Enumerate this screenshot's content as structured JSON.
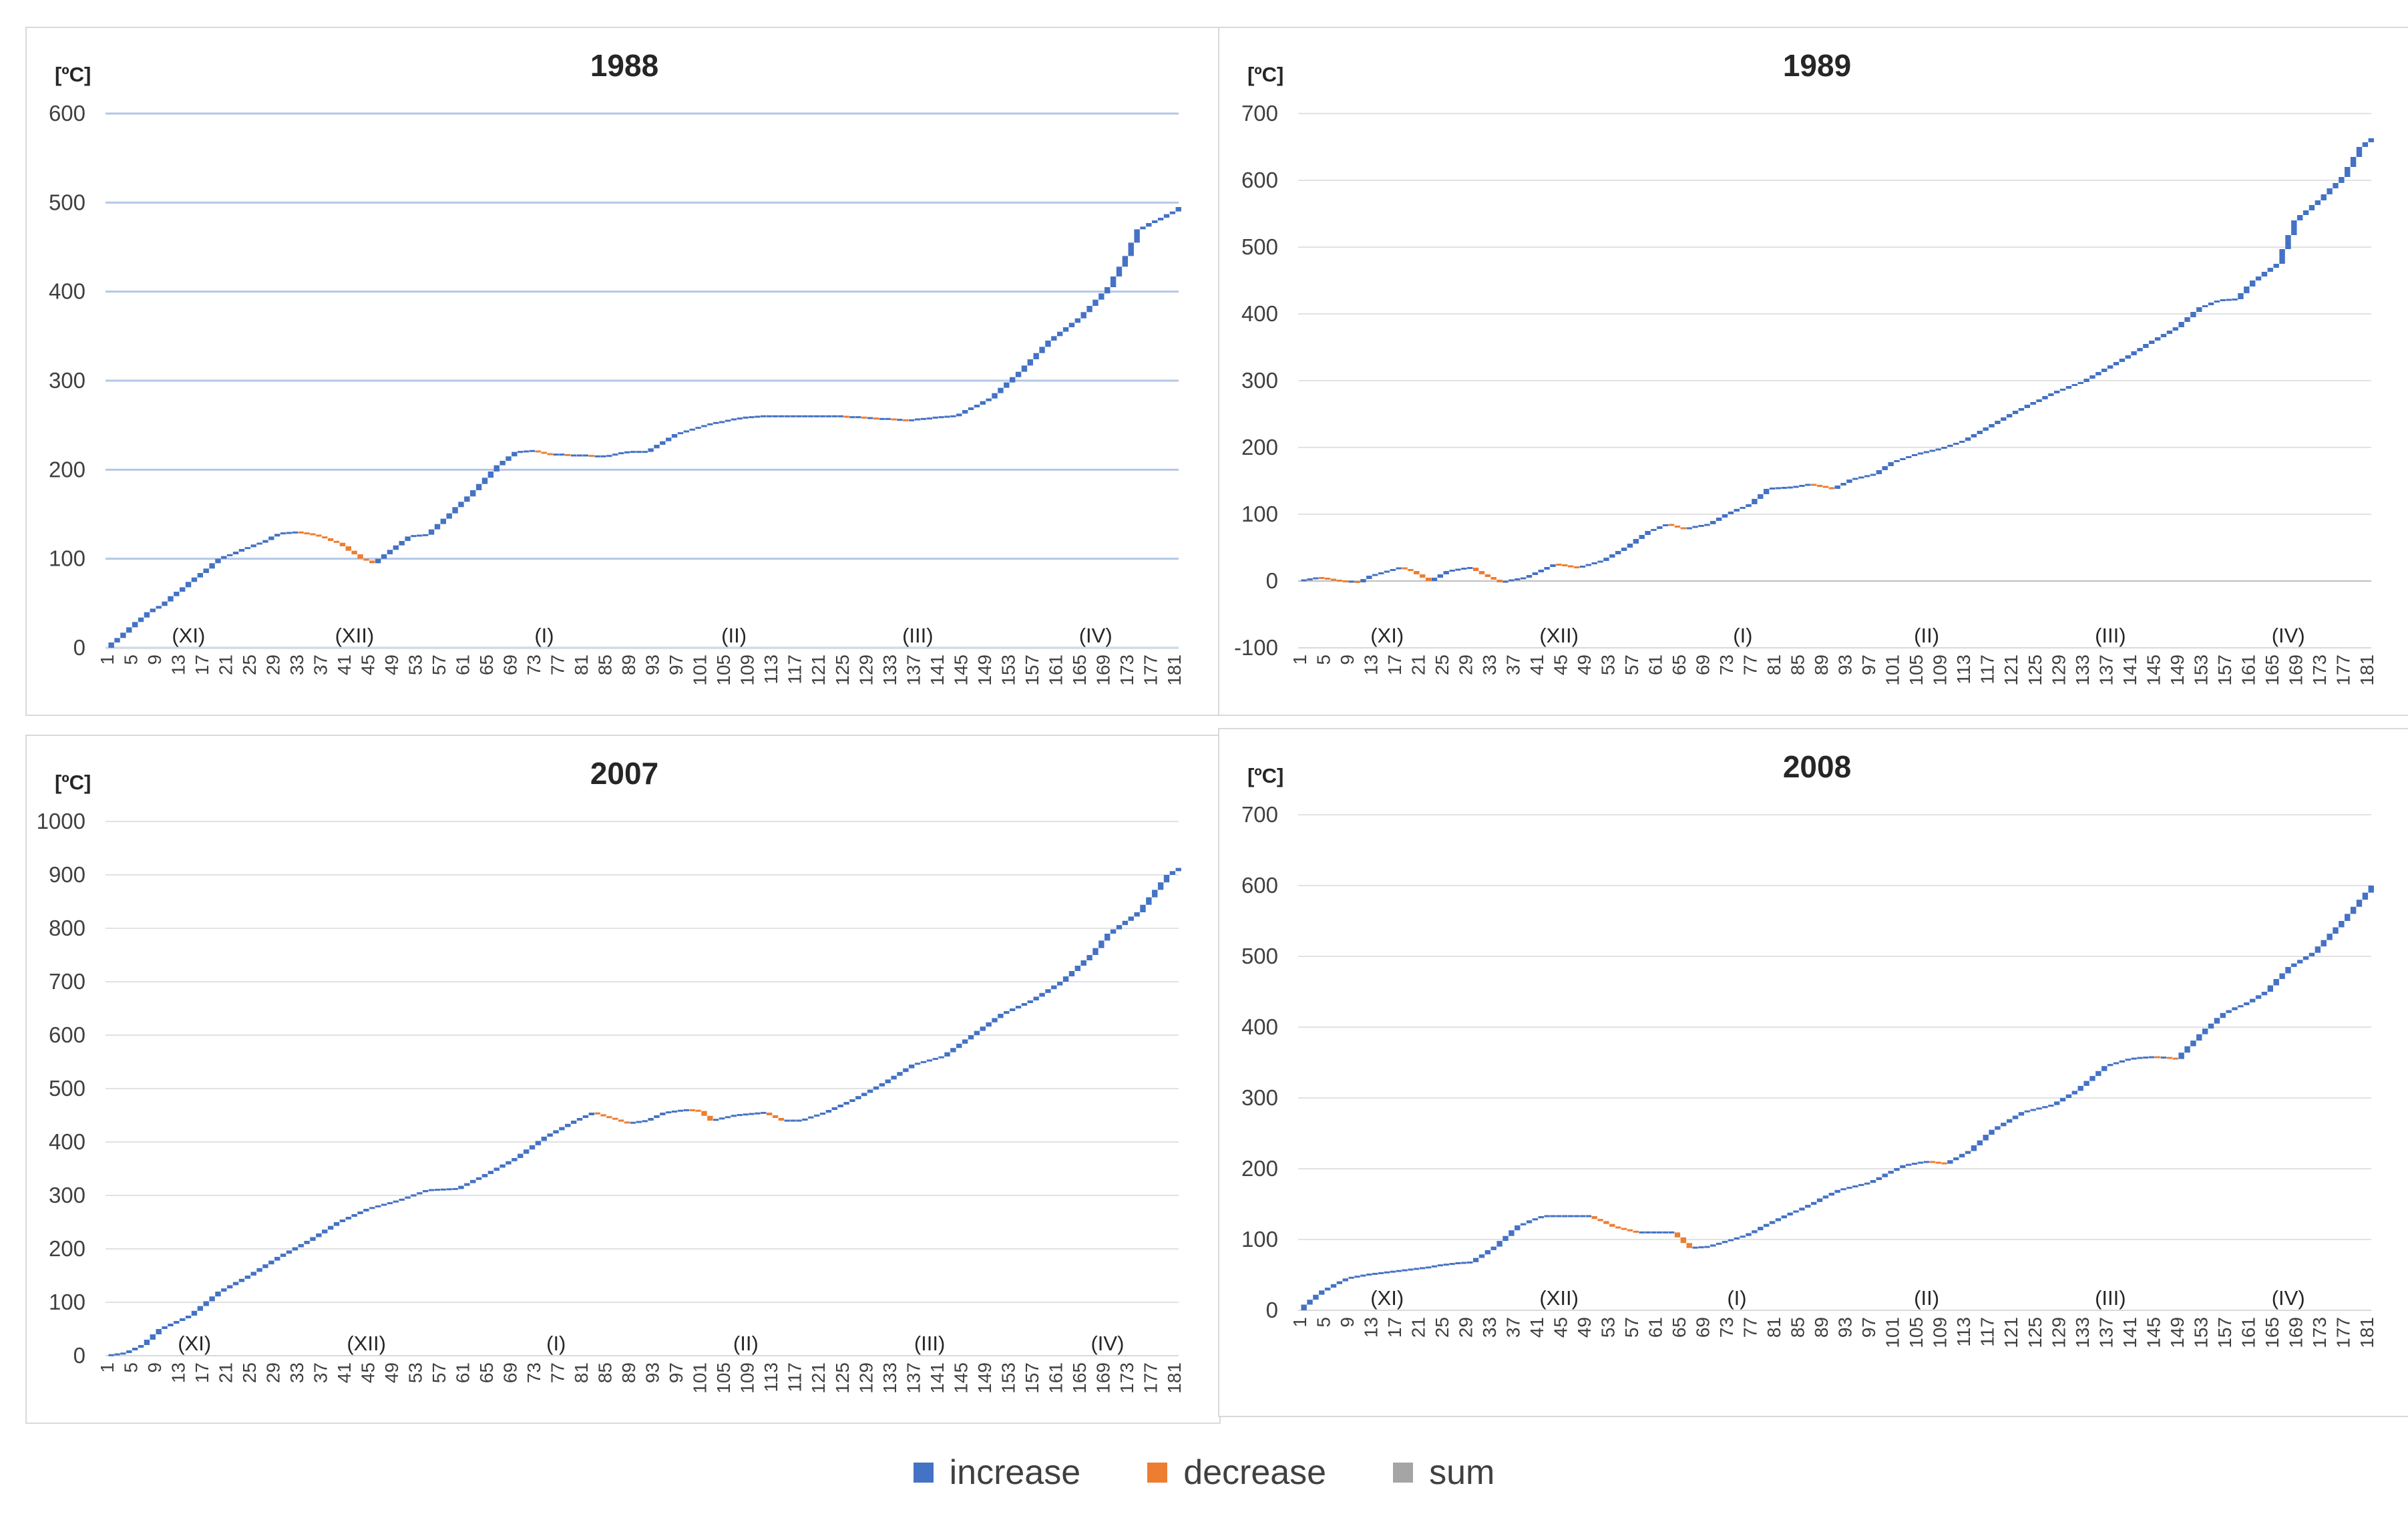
{
  "colors": {
    "increase": "#4472C4",
    "decrease": "#ED7D31",
    "sum": "#A5A5A5",
    "grid": "#D9D9D9",
    "grid_1988": "#B4C7E7"
  },
  "legend": [
    {
      "label": "increase",
      "color": "#4472C4"
    },
    {
      "label": "decrease",
      "color": "#ED7D31"
    },
    {
      "label": "sum",
      "color": "#A5A5A5"
    }
  ],
  "chart_data": [
    {
      "type": "waterfall",
      "title": "1988",
      "unit": "[ºC]",
      "x_range": [
        1,
        182
      ],
      "x_tick_step": 4,
      "ylim": [
        0,
        600
      ],
      "y_ticks": [
        0,
        100,
        200,
        300,
        400,
        500,
        600
      ],
      "month_labels": [
        {
          "label": "(XI)",
          "day": 15
        },
        {
          "label": "(XII)",
          "day": 43
        },
        {
          "label": "(I)",
          "day": 75
        },
        {
          "label": "(II)",
          "day": 107
        },
        {
          "label": "(III)",
          "day": 138
        },
        {
          "label": "(IV)",
          "day": 168
        }
      ],
      "cumulative_keypoints": [
        [
          1,
          0
        ],
        [
          8,
          40
        ],
        [
          10,
          47
        ],
        [
          20,
          100
        ],
        [
          23,
          108
        ],
        [
          27,
          118
        ],
        [
          30,
          128
        ],
        [
          33,
          130
        ],
        [
          36,
          127
        ],
        [
          40,
          118
        ],
        [
          44,
          100
        ],
        [
          46,
          95
        ],
        [
          50,
          115
        ],
        [
          52,
          125
        ],
        [
          55,
          127
        ],
        [
          58,
          145
        ],
        [
          62,
          170
        ],
        [
          67,
          205
        ],
        [
          70,
          220
        ],
        [
          73,
          221
        ],
        [
          76,
          217
        ],
        [
          85,
          215
        ],
        [
          89,
          220
        ],
        [
          92,
          220
        ],
        [
          97,
          240
        ],
        [
          103,
          252
        ],
        [
          108,
          258
        ],
        [
          112,
          260
        ],
        [
          124,
          260
        ],
        [
          132,
          257
        ],
        [
          136,
          255
        ],
        [
          140,
          258
        ],
        [
          144,
          260
        ],
        [
          150,
          280
        ],
        [
          155,
          310
        ],
        [
          160,
          345
        ],
        [
          165,
          370
        ],
        [
          170,
          405
        ],
        [
          173,
          440
        ],
        [
          175,
          470
        ],
        [
          181,
          490
        ],
        [
          183,
          500
        ]
      ]
    },
    {
      "type": "waterfall",
      "title": "1989",
      "unit": "[ºC]",
      "x_range": [
        1,
        182
      ],
      "x_tick_step": 4,
      "ylim": [
        -100,
        700
      ],
      "y_ticks": [
        -100,
        0,
        100,
        200,
        300,
        400,
        500,
        600,
        700
      ],
      "month_labels": [
        {
          "label": "(XI)",
          "day": 16
        },
        {
          "label": "(XII)",
          "day": 45
        },
        {
          "label": "(I)",
          "day": 76
        },
        {
          "label": "(II)",
          "day": 107
        },
        {
          "label": "(III)",
          "day": 138
        },
        {
          "label": "(IV)",
          "day": 168
        }
      ],
      "cumulative_keypoints": [
        [
          1,
          0
        ],
        [
          4,
          5
        ],
        [
          8,
          0
        ],
        [
          11,
          -2
        ],
        [
          13,
          8
        ],
        [
          16,
          15
        ],
        [
          18,
          20
        ],
        [
          20,
          15
        ],
        [
          23,
          0
        ],
        [
          26,
          15
        ],
        [
          30,
          20
        ],
        [
          32,
          10
        ],
        [
          35,
          -2
        ],
        [
          39,
          5
        ],
        [
          44,
          25
        ],
        [
          48,
          20
        ],
        [
          52,
          30
        ],
        [
          56,
          50
        ],
        [
          60,
          75
        ],
        [
          63,
          85
        ],
        [
          66,
          78
        ],
        [
          70,
          85
        ],
        [
          73,
          100
        ],
        [
          77,
          115
        ],
        [
          80,
          138
        ],
        [
          84,
          140
        ],
        [
          87,
          145
        ],
        [
          91,
          138
        ],
        [
          94,
          152
        ],
        [
          98,
          160
        ],
        [
          101,
          178
        ],
        [
          105,
          190
        ],
        [
          109,
          198
        ],
        [
          113,
          210
        ],
        [
          117,
          230
        ],
        [
          121,
          250
        ],
        [
          125,
          268
        ],
        [
          129,
          285
        ],
        [
          133,
          298
        ],
        [
          137,
          318
        ],
        [
          141,
          338
        ],
        [
          145,
          360
        ],
        [
          149,
          380
        ],
        [
          153,
          410
        ],
        [
          156,
          420
        ],
        [
          159,
          422
        ],
        [
          162,
          450
        ],
        [
          166,
          475
        ],
        [
          169,
          540
        ],
        [
          173,
          570
        ],
        [
          177,
          605
        ],
        [
          180,
          650
        ],
        [
          183,
          670
        ]
      ]
    },
    {
      "type": "waterfall",
      "title": "2007",
      "unit": "[ºC]",
      "x_range": [
        1,
        182
      ],
      "x_tick_step": 4,
      "ylim": [
        0,
        1000
      ],
      "y_ticks": [
        0,
        100,
        200,
        300,
        400,
        500,
        600,
        700,
        800,
        900,
        1000
      ],
      "month_labels": [
        {
          "label": "(XI)",
          "day": 16
        },
        {
          "label": "(XII)",
          "day": 45
        },
        {
          "label": "(I)",
          "day": 77
        },
        {
          "label": "(II)",
          "day": 109
        },
        {
          "label": "(III)",
          "day": 140
        },
        {
          "label": "(IV)",
          "day": 170
        }
      ],
      "cumulative_keypoints": [
        [
          1,
          0
        ],
        [
          4,
          5
        ],
        [
          7,
          20
        ],
        [
          10,
          50
        ],
        [
          15,
          75
        ],
        [
          20,
          120
        ],
        [
          25,
          150
        ],
        [
          30,
          185
        ],
        [
          35,
          215
        ],
        [
          40,
          250
        ],
        [
          45,
          275
        ],
        [
          50,
          290
        ],
        [
          55,
          310
        ],
        [
          60,
          312
        ],
        [
          65,
          340
        ],
        [
          70,
          370
        ],
        [
          75,
          410
        ],
        [
          80,
          440
        ],
        [
          83,
          455
        ],
        [
          86,
          445
        ],
        [
          89,
          435
        ],
        [
          92,
          440
        ],
        [
          95,
          455
        ],
        [
          99,
          460
        ],
        [
          101,
          458
        ],
        [
          103,
          440
        ],
        [
          107,
          450
        ],
        [
          112,
          455
        ],
        [
          115,
          440
        ],
        [
          118,
          440
        ],
        [
          122,
          455
        ],
        [
          127,
          480
        ],
        [
          132,
          510
        ],
        [
          137,
          545
        ],
        [
          142,
          560
        ],
        [
          147,
          600
        ],
        [
          152,
          640
        ],
        [
          157,
          665
        ],
        [
          162,
          700
        ],
        [
          167,
          750
        ],
        [
          170,
          790
        ],
        [
          175,
          830
        ],
        [
          180,
          900
        ],
        [
          183,
          920
        ]
      ]
    },
    {
      "type": "waterfall",
      "title": "2008",
      "unit": "[ºC]",
      "x_range": [
        1,
        182
      ],
      "x_tick_step": 4,
      "ylim": [
        0,
        700
      ],
      "y_ticks": [
        0,
        100,
        200,
        300,
        400,
        500,
        600,
        700
      ],
      "month_labels": [
        {
          "label": "(XI)",
          "day": 16
        },
        {
          "label": "(XII)",
          "day": 45
        },
        {
          "label": "(I)",
          "day": 75
        },
        {
          "label": "(II)",
          "day": 107
        },
        {
          "label": "(III)",
          "day": 138
        },
        {
          "label": "(IV)",
          "day": 168
        }
      ],
      "cumulative_keypoints": [
        [
          1,
          0
        ],
        [
          3,
          15
        ],
        [
          5,
          28
        ],
        [
          9,
          45
        ],
        [
          12,
          50
        ],
        [
          17,
          55
        ],
        [
          22,
          60
        ],
        [
          26,
          65
        ],
        [
          30,
          68
        ],
        [
          34,
          90
        ],
        [
          38,
          120
        ],
        [
          42,
          133
        ],
        [
          50,
          133
        ],
        [
          54,
          118
        ],
        [
          58,
          110
        ],
        [
          64,
          110
        ],
        [
          67,
          88
        ],
        [
          70,
          90
        ],
        [
          76,
          105
        ],
        [
          82,
          130
        ],
        [
          86,
          145
        ],
        [
          92,
          170
        ],
        [
          97,
          180
        ],
        [
          103,
          205
        ],
        [
          107,
          210
        ],
        [
          110,
          207
        ],
        [
          114,
          225
        ],
        [
          118,
          255
        ],
        [
          123,
          280
        ],
        [
          128,
          290
        ],
        [
          132,
          310
        ],
        [
          137,
          345
        ],
        [
          141,
          355
        ],
        [
          145,
          358
        ],
        [
          149,
          355
        ],
        [
          153,
          390
        ],
        [
          157,
          420
        ],
        [
          161,
          435
        ],
        [
          164,
          450
        ],
        [
          168,
          485
        ],
        [
          172,
          505
        ],
        [
          177,
          550
        ],
        [
          183,
          610
        ]
      ]
    }
  ]
}
